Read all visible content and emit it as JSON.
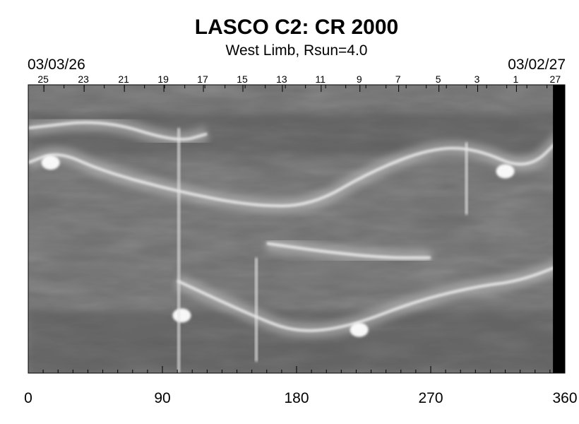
{
  "chart_data": {
    "type": "heatmap",
    "title": "LASCO C2: CR 2000",
    "subtitle": "West Limb, Rsun=4.0",
    "top_axis": {
      "start_date": "03/03/26",
      "end_date": "03/02/27",
      "day_ticks": [
        {
          "label": "25",
          "x": 10.5
        },
        {
          "label": "23",
          "x": 37.5
        },
        {
          "label": "21",
          "x": 64.5
        },
        {
          "label": "19",
          "x": 91
        },
        {
          "label": "17",
          "x": 117.5
        },
        {
          "label": "15",
          "x": 144
        },
        {
          "label": "13",
          "x": 170.5
        },
        {
          "label": "11",
          "x": 196.5
        },
        {
          "label": "9",
          "x": 222.5
        },
        {
          "label": "7",
          "x": 248.5
        },
        {
          "label": "5",
          "x": 275.5
        },
        {
          "label": "3",
          "x": 301.5
        },
        {
          "label": "1",
          "x": 327.5
        },
        {
          "label": "27",
          "x": 354
        }
      ]
    },
    "x_axis": {
      "range": [
        0,
        360
      ],
      "ticks": [
        0,
        90,
        180,
        270,
        360
      ]
    },
    "colormap": "grayscale",
    "no_data_region": [
      352,
      360
    ],
    "features": [
      {
        "kind": "streamer",
        "points": [
          [
            0,
            0.27
          ],
          [
            20,
            0.23
          ],
          [
            50,
            0.3
          ],
          [
            100,
            0.37
          ],
          [
            150,
            0.42
          ],
          [
            190,
            0.42
          ],
          [
            230,
            0.3
          ],
          [
            270,
            0.22
          ],
          [
            300,
            0.22
          ],
          [
            335,
            0.3
          ],
          [
            360,
            0.17
          ]
        ]
      },
      {
        "kind": "streamer",
        "points": [
          [
            100,
            0.68
          ],
          [
            150,
            0.8
          ],
          [
            180,
            0.86
          ],
          [
            215,
            0.84
          ],
          [
            260,
            0.75
          ],
          [
            300,
            0.7
          ],
          [
            330,
            0.68
          ],
          [
            360,
            0.62
          ]
        ]
      },
      {
        "kind": "streamer",
        "points": [
          [
            0,
            0.15
          ],
          [
            50,
            0.12
          ],
          [
            100,
            0.2
          ],
          [
            120,
            0.17
          ]
        ]
      },
      {
        "kind": "streamer",
        "points": [
          [
            160,
            0.55
          ],
          [
            200,
            0.58
          ],
          [
            240,
            0.6
          ],
          [
            270,
            0.6
          ]
        ]
      },
      {
        "kind": "blob",
        "x": 320,
        "y": 0.3
      },
      {
        "kind": "blob",
        "x": 103,
        "y": 0.8
      },
      {
        "kind": "blob",
        "x": 15,
        "y": 0.27
      },
      {
        "kind": "blob",
        "x": 222,
        "y": 0.85
      },
      {
        "kind": "streak",
        "x": 101,
        "from": 0.15,
        "to": 1.0
      },
      {
        "kind": "streak",
        "x": 153,
        "from": 0.6,
        "to": 0.96
      },
      {
        "kind": "streak",
        "x": 294,
        "from": 0.2,
        "to": 0.45
      }
    ]
  }
}
